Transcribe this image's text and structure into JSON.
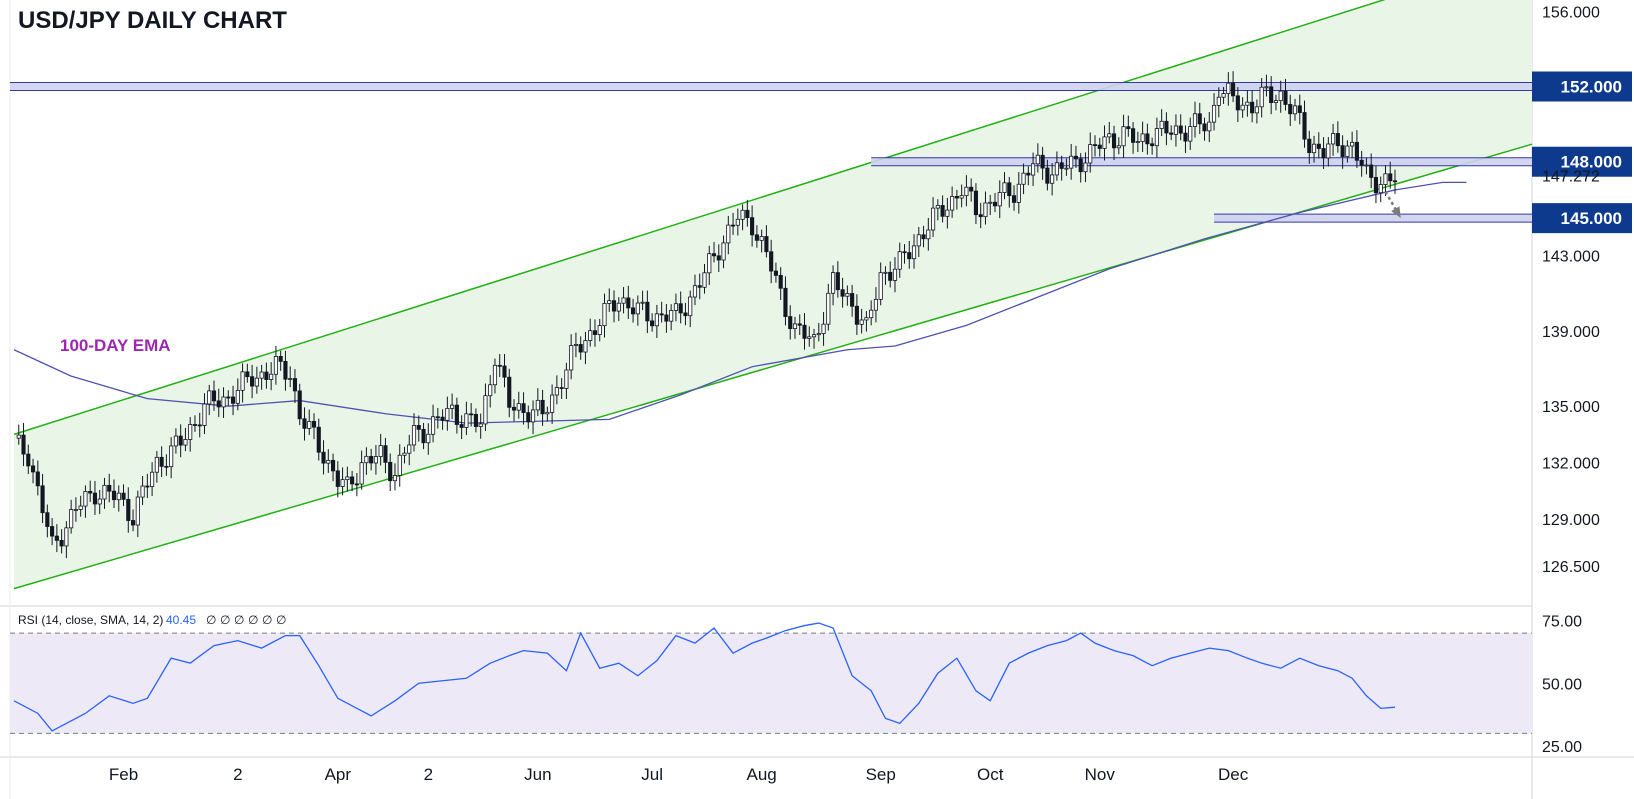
{
  "chart_data": [
    {
      "type": "candlestick",
      "title": "USD/JPY DAILY CHART",
      "ylim": [
        124.8,
        156.6
      ],
      "y_ticks": [
        "156.000",
        "143.000",
        "139.000",
        "135.000",
        "132.000",
        "129.000",
        "126.500"
      ],
      "x_ticks": [
        "Feb",
        "2",
        "Apr",
        "2",
        "Jun",
        "Jul",
        "Aug",
        "Sep",
        "Oct",
        "Nov",
        "Dec"
      ],
      "last_price": "147.272",
      "level_labels": [
        "152.000",
        "148.000",
        "145.000"
      ],
      "annotations": [
        "100-DAY EMA"
      ],
      "colors": {
        "channel": "#22b014",
        "channel_fill": "#e8f4e6",
        "level": "#3437a8",
        "badge": "#0d3a8c",
        "ema": "#4f52b0",
        "ema_label": "#9c27b0",
        "up_candle": "#ffffff",
        "down_candle": "#131722",
        "arrow": "#7b7b7b"
      },
      "ema_100": [
        [
          0,
          138.0
        ],
        [
          12,
          136.6
        ],
        [
          28,
          135.4
        ],
        [
          45,
          135.0
        ],
        [
          60,
          135.3
        ],
        [
          78,
          134.6
        ],
        [
          95,
          134.1
        ],
        [
          110,
          134.2
        ],
        [
          125,
          134.3
        ],
        [
          140,
          135.6
        ],
        [
          155,
          137.1
        ],
        [
          175,
          138.0
        ],
        [
          185,
          138.2
        ],
        [
          200,
          139.3
        ],
        [
          215,
          140.8
        ],
        [
          230,
          142.3
        ],
        [
          250,
          143.9
        ],
        [
          270,
          145.3
        ],
        [
          290,
          146.5
        ],
        [
          300,
          146.9
        ],
        [
          305,
          146.9
        ]
      ],
      "ohlc_waypoints": [
        [
          0,
          133.0
        ],
        [
          3,
          132.5
        ],
        [
          8,
          127.5
        ],
        [
          13,
          129.5
        ],
        [
          17,
          130.5
        ],
        [
          22,
          130.1
        ],
        [
          25,
          129.2
        ],
        [
          30,
          132.0
        ],
        [
          35,
          133.0
        ],
        [
          40,
          135.0
        ],
        [
          45,
          135.5
        ],
        [
          50,
          136.5
        ],
        [
          55,
          137.0
        ],
        [
          58,
          136.8
        ],
        [
          60,
          134.5
        ],
        [
          65,
          132.5
        ],
        [
          68,
          131.0
        ],
        [
          70,
          130.6
        ],
        [
          73,
          132.0
        ],
        [
          77,
          132.3
        ],
        [
          80,
          131.5
        ],
        [
          84,
          133.5
        ],
        [
          88,
          134.0
        ],
        [
          92,
          134.8
        ],
        [
          95,
          134.2
        ],
        [
          98,
          134.0
        ],
        [
          101,
          137.8
        ],
        [
          104,
          135.0
        ],
        [
          108,
          134.8
        ],
        [
          111,
          134.5
        ],
        [
          115,
          136.5
        ],
        [
          118,
          138.0
        ],
        [
          123,
          139.5
        ],
        [
          127,
          140.8
        ],
        [
          131,
          140.0
        ],
        [
          134,
          139.8
        ],
        [
          139,
          139.8
        ],
        [
          144,
          141.5
        ],
        [
          148,
          143.5
        ],
        [
          152,
          145.0
        ],
        [
          155,
          144.8
        ],
        [
          158,
          143.0
        ],
        [
          161,
          141.0
        ],
        [
          164,
          139.0
        ],
        [
          168,
          138.5
        ],
        [
          172,
          141.5
        ],
        [
          176,
          140.5
        ],
        [
          179,
          139.0
        ],
        [
          182,
          142.0
        ],
        [
          186,
          142.5
        ],
        [
          190,
          144.0
        ],
        [
          195,
          145.5
        ],
        [
          199,
          146.5
        ],
        [
          202,
          145.5
        ],
        [
          205,
          145.8
        ],
        [
          210,
          146.5
        ],
        [
          214,
          147.8
        ],
        [
          218,
          147.5
        ],
        [
          222,
          147.8
        ],
        [
          226,
          148.5
        ],
        [
          230,
          149.2
        ],
        [
          233,
          149.5
        ],
        [
          236,
          149.0
        ],
        [
          239,
          149.5
        ],
        [
          243,
          149.6
        ],
        [
          247,
          149.8
        ],
        [
          251,
          150.0
        ],
        [
          253,
          152.0
        ],
        [
          256,
          151.2
        ],
        [
          260,
          151.0
        ],
        [
          263,
          151.5
        ],
        [
          266,
          151.6
        ],
        [
          269,
          150.5
        ],
        [
          272,
          149.0
        ],
        [
          275,
          148.5
        ],
        [
          278,
          149.0
        ],
        [
          281,
          148.8
        ],
        [
          284,
          147.2
        ],
        [
          287,
          147.0
        ],
        [
          290,
          147.0
        ]
      ],
      "wick_pad": 0.3,
      "horizontal_levels": [
        152.0,
        148.0,
        145.0
      ],
      "channel_upper": [
        [
          0,
          133.5
        ],
        [
          290,
          156.8
        ]
      ],
      "channel_lower": [
        [
          0,
          125.3
        ],
        [
          290,
          146.8
        ]
      ],
      "projection_arrow": [
        [
          288,
          146.4
        ],
        [
          291,
          145.1
        ]
      ]
    },
    {
      "type": "line",
      "title": "",
      "series_label": "RSI (14, close, SMA, 14, 2)",
      "last_value_label": "40.45",
      "extra_labels": [
        "∅",
        "∅",
        "∅",
        "∅",
        "∅",
        "∅"
      ],
      "ylim": [
        21.0,
        80.0
      ],
      "y_ticks": [
        "75.00",
        "50.00",
        "25.00"
      ],
      "bands": [
        70,
        30
      ],
      "colors": {
        "line": "#2962ff",
        "band_fill": "#ede9f7",
        "band_line": "#787b86"
      },
      "rsi_points": [
        [
          0,
          43
        ],
        [
          5,
          38
        ],
        [
          8,
          31
        ],
        [
          15,
          38
        ],
        [
          20,
          45
        ],
        [
          25,
          42
        ],
        [
          28,
          44
        ],
        [
          33,
          60
        ],
        [
          37,
          58
        ],
        [
          42,
          65
        ],
        [
          47,
          67
        ],
        [
          52,
          64
        ],
        [
          57,
          69
        ],
        [
          60,
          69
        ],
        [
          64,
          57
        ],
        [
          68,
          44
        ],
        [
          72,
          40
        ],
        [
          75,
          37
        ],
        [
          80,
          43
        ],
        [
          85,
          50
        ],
        [
          90,
          51
        ],
        [
          95,
          52
        ],
        [
          100,
          58
        ],
        [
          104,
          61
        ],
        [
          107,
          63
        ],
        [
          112,
          62
        ],
        [
          116,
          55
        ],
        [
          119,
          70
        ],
        [
          123,
          56
        ],
        [
          127,
          58
        ],
        [
          131,
          53
        ],
        [
          135,
          59
        ],
        [
          139,
          69
        ],
        [
          143,
          66
        ],
        [
          147,
          72
        ],
        [
          151,
          62
        ],
        [
          155,
          66
        ],
        [
          158,
          68
        ],
        [
          162,
          71
        ],
        [
          166,
          73
        ],
        [
          169,
          74
        ],
        [
          172,
          72
        ],
        [
          176,
          53
        ],
        [
          180,
          47
        ],
        [
          183,
          36
        ],
        [
          186,
          34
        ],
        [
          190,
          42
        ],
        [
          194,
          54
        ],
        [
          198,
          60
        ],
        [
          202,
          47
        ],
        [
          205,
          43
        ],
        [
          209,
          58
        ],
        [
          213,
          62
        ],
        [
          217,
          65
        ],
        [
          221,
          67
        ],
        [
          224,
          70
        ],
        [
          227,
          66
        ],
        [
          231,
          63
        ],
        [
          235,
          61
        ],
        [
          239,
          57
        ],
        [
          243,
          60
        ],
        [
          247,
          62
        ],
        [
          251,
          64
        ],
        [
          255,
          63
        ],
        [
          259,
          60
        ],
        [
          262,
          58
        ],
        [
          266,
          56
        ],
        [
          270,
          60
        ],
        [
          274,
          57
        ],
        [
          278,
          55
        ],
        [
          281,
          52
        ],
        [
          284,
          45
        ],
        [
          287,
          40
        ],
        [
          290,
          40.45
        ]
      ],
      "channel_anchor_x": [
        0,
        290
      ]
    }
  ]
}
